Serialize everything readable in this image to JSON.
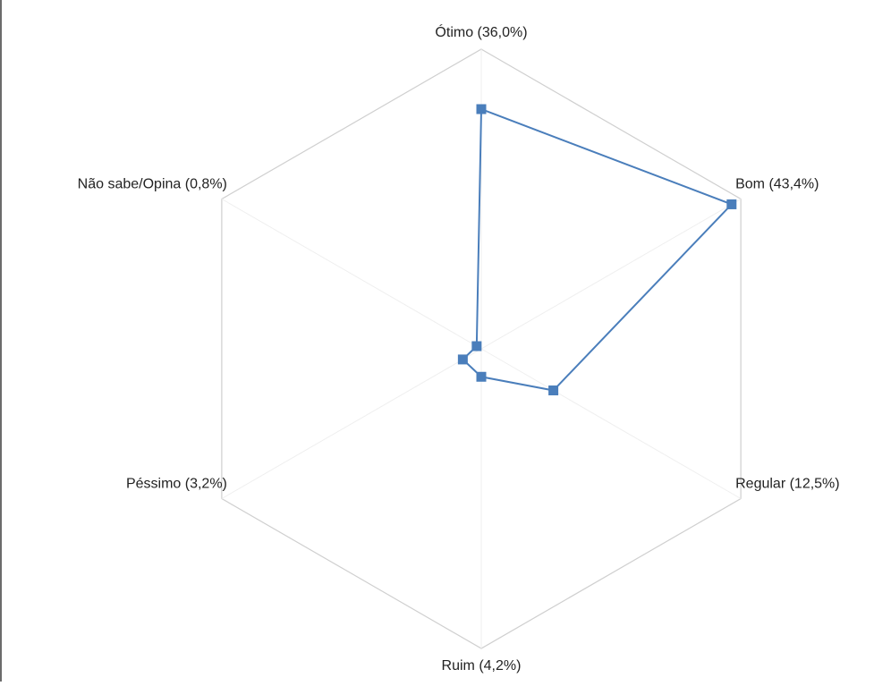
{
  "chart_data": {
    "type": "radar",
    "title": "",
    "categories": [
      "Ótimo (36,0%)",
      "Bom (43,4%)",
      "Regular (12,5%)",
      "Ruim (4,2%)",
      "Péssimo (3,2%)",
      "Não sabe/Opina (0,8%)"
    ],
    "values": [
      36.0,
      43.4,
      12.5,
      4.2,
      3.2,
      0.8
    ],
    "rmax": 45,
    "grid": true,
    "legend": "none",
    "series_color": "#4a7ebb",
    "grid_color": "#cfcfcf",
    "spoke_color": "#efefef"
  }
}
